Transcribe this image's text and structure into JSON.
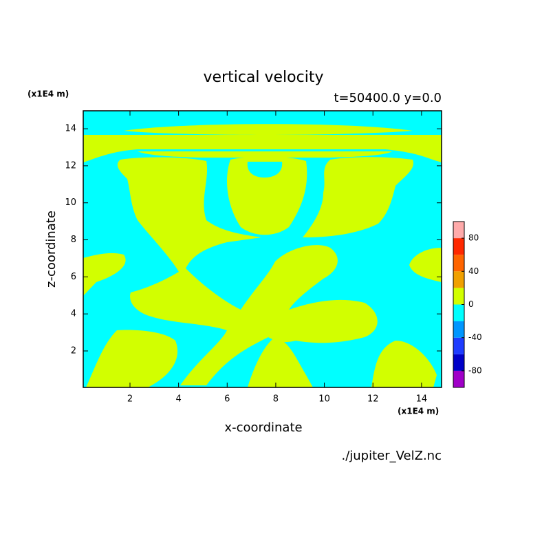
{
  "chart_data": {
    "type": "contour",
    "title": "vertical velocity",
    "subtitle": "t=50400.0 y=0.0",
    "x_label": "x-coordinate",
    "y_label": "z-coordinate",
    "x_unit": "(x1E4 m)",
    "y_unit": "(x1E4 m)",
    "source": "./jupiter_VelZ.nc",
    "xlim": [
      0.075,
      14.825
    ],
    "ylim": [
      0.03,
      14.97
    ],
    "xticks": [
      2,
      4,
      6,
      8,
      10,
      12,
      14
    ],
    "yticks": [
      2,
      4,
      6,
      8,
      10,
      12,
      14
    ],
    "levels": [
      -100,
      -80,
      -60,
      -40,
      -20,
      0,
      20,
      40,
      60,
      80,
      100
    ],
    "colors": [
      "#a000c8",
      "#0000c8",
      "#1e3cff",
      "#0096ff",
      "#00ffff",
      "#d2ff00",
      "#f0a000",
      "#ff6400",
      "#ff2800",
      "#ffaaaa"
    ],
    "colorbar_ticks": [
      -80,
      -40,
      0,
      40,
      80
    ]
  }
}
